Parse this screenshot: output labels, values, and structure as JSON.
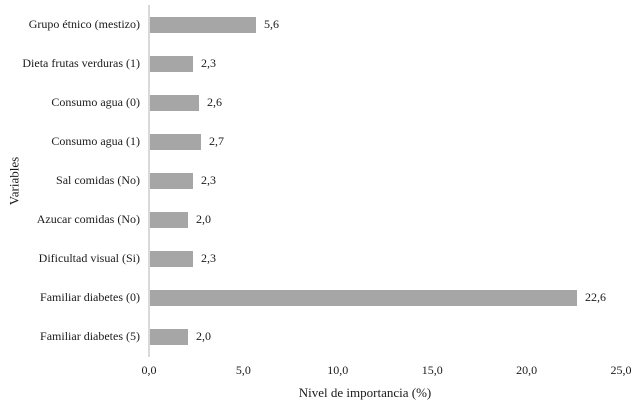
{
  "chart_data": {
    "type": "bar",
    "orientation": "horizontal",
    "categories": [
      "Grupo étnico (mestizo)",
      "Dieta frutas verduras (1)",
      "Consumo agua (0)",
      "Consumo agua (1)",
      "Sal comidas (No)",
      "Azucar comidas (No)",
      "Dificultad visual (Si)",
      "Familiar diabetes (0)",
      "Familiar diabetes (5)"
    ],
    "values": [
      5.6,
      2.3,
      2.6,
      2.7,
      2.3,
      2.0,
      2.3,
      22.6,
      2.0
    ],
    "value_labels": [
      "5,6",
      "2,3",
      "2,6",
      "2,7",
      "2,3",
      "2,0",
      "2,3",
      "22,6",
      "2,0"
    ],
    "xlabel": "Nivel de importancia (%)",
    "ylabel": "Variables",
    "xlim": [
      0,
      25
    ],
    "xticks": [
      0,
      5,
      10,
      15,
      20,
      25
    ],
    "xtick_labels": [
      "0,0",
      "5,0",
      "10,0",
      "15,0",
      "20,0",
      "25,0"
    ],
    "grid": false,
    "legend": false,
    "bar_color": "#a6a6a6",
    "axis_color": "#d9d9d9",
    "text_color": "#1a1a1a"
  }
}
